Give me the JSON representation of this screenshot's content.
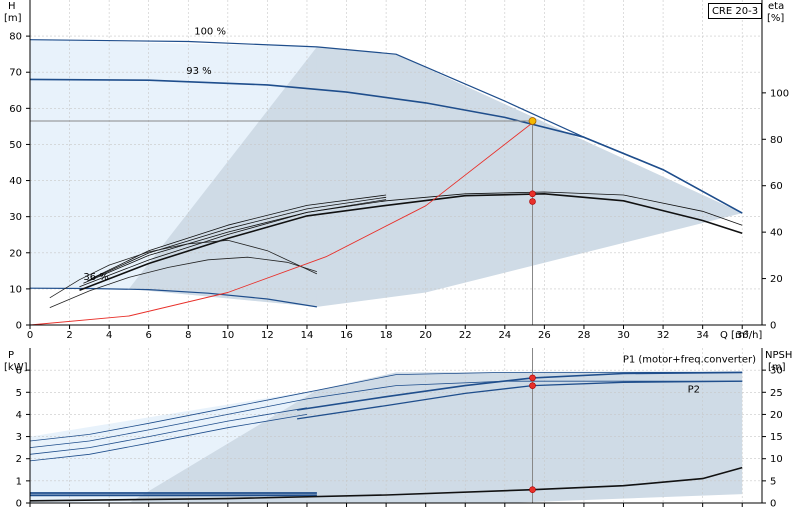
{
  "model": "CRE 20-3",
  "chart_data": [
    {
      "type": "line",
      "title": "",
      "ylabel_left": "H",
      "ylabel_left_unit": "[m]",
      "ylabel_right": "eta",
      "ylabel_right_unit": "[%]",
      "xlabel": "Q [m³/h]",
      "xlim": [
        0,
        37
      ],
      "ylim": [
        0,
        90
      ],
      "y2lim": [
        0,
        140
      ],
      "xticks": [
        "0",
        "2",
        "4",
        "6",
        "8",
        "10",
        "12",
        "14",
        "16",
        "18",
        "20",
        "22",
        "24",
        "26",
        "28",
        "30",
        "32",
        "34",
        "36"
      ],
      "yticks": [
        "0",
        "10",
        "20",
        "30",
        "40",
        "50",
        "60",
        "70",
        "80"
      ],
      "y2ticks": [
        "0",
        "20",
        "40",
        "60",
        "80",
        "100"
      ],
      "curve_labels": [
        "100 %",
        "93 %",
        "36 %"
      ],
      "grid": true,
      "head_curves": [
        {
          "label": "100 %",
          "x": [
            0,
            8,
            14.5,
            18.5,
            24,
            28,
            32,
            36
          ],
          "y": [
            79,
            78.5,
            77,
            75,
            62,
            52,
            43,
            31
          ]
        },
        {
          "label": "93 %",
          "x": [
            0,
            6,
            12,
            16,
            20,
            24,
            28,
            32,
            36
          ],
          "y": [
            68,
            67.8,
            66.5,
            64.5,
            61.5,
            57.5,
            52,
            43,
            31
          ]
        },
        {
          "label": "36 %",
          "x": [
            0,
            3,
            6,
            9,
            12,
            14.5
          ],
          "y": [
            10.2,
            10.1,
            9.8,
            8.8,
            7.2,
            5
          ]
        }
      ],
      "system_curve": {
        "x": [
          0,
          5,
          10,
          15,
          20,
          25.4
        ],
        "y": [
          0,
          2.5,
          9,
          19,
          33,
          56
        ]
      },
      "efficiency_curves": [
        {
          "x": [
            2.5,
            6,
            10,
            14,
            18,
            22,
            26,
            30,
            34,
            36
          ],
          "y": [
            15,
            26.5,
            37.3,
            47,
            51.5,
            55.7,
            56.5,
            53.5,
            45,
            39.5
          ]
        },
        {
          "x": [
            2.5,
            6,
            10,
            14,
            18,
            22,
            26,
            30,
            34,
            36
          ],
          "y": [
            16.5,
            28,
            39,
            48.5,
            53.5,
            56.5,
            57.3,
            56,
            49,
            43
          ]
        },
        {
          "x": [
            2.7,
            6,
            10,
            14,
            18
          ],
          "y": [
            18,
            30,
            40,
            48.5,
            54
          ]
        },
        {
          "x": [
            2.9,
            6,
            10,
            14,
            18
          ],
          "y": [
            19,
            31,
            41.5,
            50,
            55
          ]
        },
        {
          "x": [
            3.1,
            6,
            10,
            14,
            18
          ],
          "y": [
            20,
            32,
            43,
            51.5,
            56
          ]
        }
      ],
      "small_efficiency_curves": [
        {
          "x": [
            1,
            2.5,
            4,
            6,
            8,
            10,
            12,
            14.5
          ],
          "y": [
            11.7,
            19.5,
            25.8,
            31.5,
            35,
            36.5,
            32,
            22
          ]
        },
        {
          "x": [
            1,
            3,
            5,
            7,
            9,
            11,
            13,
            14.5
          ],
          "y": [
            7.5,
            14.7,
            20.5,
            24.8,
            28.1,
            29.2,
            27,
            23
          ]
        }
      ],
      "operating_point": {
        "x": 25.4,
        "head": 56.5,
        "eta_points": [
          56.5,
          53.2
        ]
      }
    },
    {
      "type": "line",
      "ylabel_left": "P",
      "ylabel_left_unit": "[kW]",
      "ylabel_right": "NPSH",
      "ylabel_right_unit": "[m]",
      "xlim": [
        0,
        37
      ],
      "ylim": [
        0,
        7
      ],
      "y2lim": [
        0,
        35
      ],
      "yticks": [
        "0",
        "1",
        "2",
        "3",
        "4",
        "5",
        "6"
      ],
      "y2ticks": [
        "0",
        "5",
        "10",
        "15",
        "20",
        "25",
        "30"
      ],
      "legend": [
        "P1 (motor+freq.converter)",
        "P2"
      ],
      "grid": true,
      "power_curves": [
        {
          "x": [
            0,
            3,
            6,
            10,
            14,
            18.5,
            24,
            30,
            36
          ],
          "y": [
            2.8,
            3.1,
            3.6,
            4.3,
            5,
            5.8,
            5.9,
            5.9,
            5.9
          ]
        },
        {
          "x": [
            0,
            3,
            6,
            10,
            14,
            18.5,
            24,
            30,
            36
          ],
          "y": [
            2.5,
            2.8,
            3.3,
            4,
            4.7,
            5.3,
            5.5,
            5.5,
            5.5
          ]
        },
        {
          "x": [
            0,
            3,
            6,
            10,
            14
          ],
          "y": [
            2.2,
            2.5,
            3,
            3.7,
            4.3
          ]
        },
        {
          "x": [
            0,
            3,
            6,
            10,
            14
          ],
          "y": [
            1.9,
            2.2,
            2.7,
            3.4,
            4
          ]
        }
      ],
      "p1_curve": {
        "x": [
          13.5,
          18,
          22,
          25.4,
          30,
          36
        ],
        "y": [
          4.2,
          4.8,
          5.3,
          5.65,
          5.85,
          5.9
        ]
      },
      "p2_curve": {
        "x": [
          13.5,
          18,
          22,
          25.4,
          30,
          36
        ],
        "y": [
          3.8,
          4.4,
          4.95,
          5.3,
          5.45,
          5.5
        ]
      },
      "low_power_curves": [
        {
          "x": [
            0,
            14.5
          ],
          "y": [
            0.45,
            0.45
          ]
        },
        {
          "x": [
            0,
            14.5
          ],
          "y": [
            0.35,
            0.35
          ]
        }
      ],
      "npsh_curve": {
        "x": [
          0,
          10,
          18,
          25.4,
          30,
          34,
          36
        ],
        "y": [
          0.5,
          1,
          1.8,
          3,
          3.9,
          5.5,
          8
        ]
      },
      "operating_points": {
        "x": 25.4,
        "p1": 5.65,
        "p2": 5.3,
        "npsh": 3
      }
    }
  ]
}
